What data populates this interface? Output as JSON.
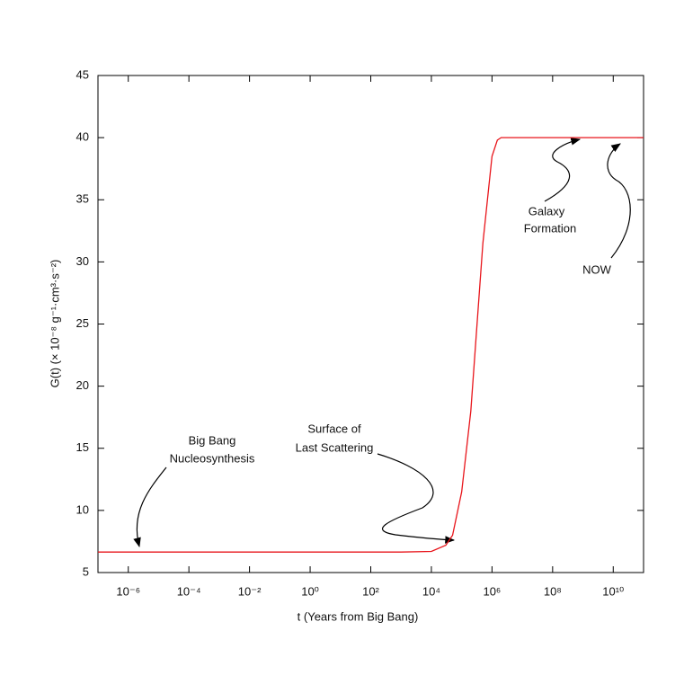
{
  "chart_data": {
    "type": "line",
    "xlabel": "t (Years from Big Bang)",
    "ylabel": "G(t)  (× 10⁻⁸ g⁻¹·cm³·s⁻²)",
    "x": [
      1e-07,
      1,
      1000,
      10000,
      30000,
      50000,
      100000,
      200000,
      300000,
      500000,
      1000000,
      1500000,
      2000000,
      100000000000.0
    ],
    "values": [
      6.65,
      6.65,
      6.65,
      6.7,
      7.2,
      8,
      11.5,
      18,
      24,
      31.5,
      38.5,
      39.8,
      40,
      40
    ],
    "color": "#e8151b",
    "xscale": "log",
    "xlim": [
      1e-07,
      100000000000.0
    ],
    "xticks": [
      {
        "value": 1e-06,
        "label": "10⁻⁶"
      },
      {
        "value": 0.0001,
        "label": "10⁻⁴"
      },
      {
        "value": 0.01,
        "label": "10⁻²"
      },
      {
        "value": 1,
        "label": "10⁰"
      },
      {
        "value": 100,
        "label": "10²"
      },
      {
        "value": 10000,
        "label": "10⁴"
      },
      {
        "value": 1000000,
        "label": "10⁶"
      },
      {
        "value": 100000000,
        "label": "10⁸"
      },
      {
        "value": 10000000000,
        "label": "10¹⁰"
      }
    ],
    "ylim": [
      5,
      45
    ],
    "yticks": [
      5,
      10,
      15,
      20,
      25,
      30,
      35,
      40,
      45
    ],
    "annotations": [
      {
        "lines": [
          "Big Bang",
          "Nucleosynthesis"
        ]
      },
      {
        "lines": [
          "Surface of",
          "Last Scattering"
        ]
      },
      {
        "lines": [
          "Galaxy",
          "Formation"
        ]
      },
      {
        "lines": [
          "NOW"
        ]
      }
    ]
  }
}
